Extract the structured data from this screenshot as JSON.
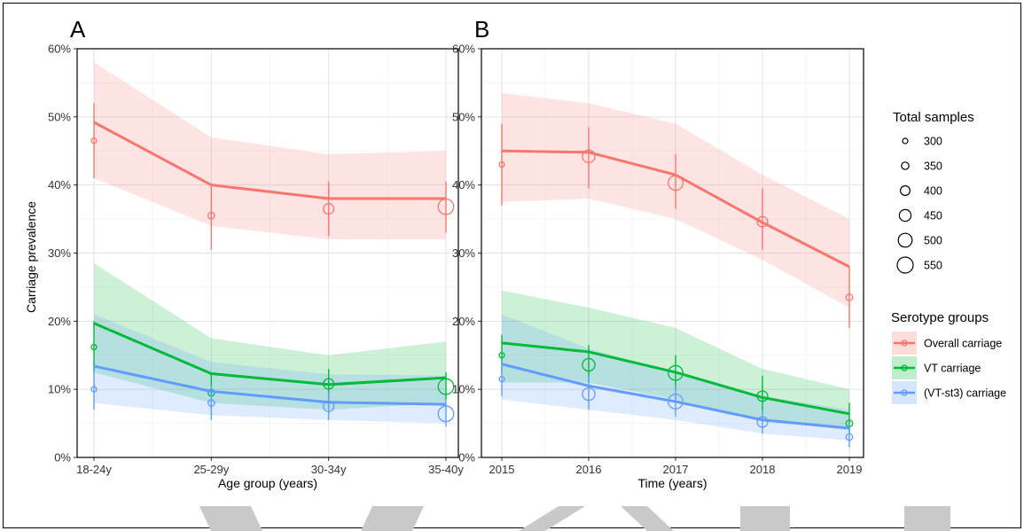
{
  "colors": {
    "overall": "#F8766D",
    "vt": "#00BA38",
    "vtst3": "#619CFF",
    "watermark": "#c9c9c9"
  },
  "legend": {
    "size_title": "Total samples",
    "size_entries": [
      "300",
      "350",
      "400",
      "450",
      "500",
      "550"
    ],
    "group_title": "Serotype groups",
    "group_entries": [
      "Overall carriage",
      "VT carriage",
      "(VT-st3) carriage"
    ]
  },
  "ylabel": "Carriage prevalence",
  "chart_data": [
    {
      "panel": "A",
      "type": "line",
      "xlabel": "Age group (years)",
      "ylabel": "Carriage prevalence",
      "categories": [
        "18-24y",
        "25-29y",
        "30-34y",
        "35-40y"
      ],
      "y_ticks": [
        "0%",
        "10%",
        "20%",
        "30%",
        "40%",
        "50%",
        "60%"
      ],
      "ylim": [
        0,
        60
      ],
      "grid": true,
      "legend": "right",
      "series": [
        {
          "name": "Overall carriage",
          "fit": [
            49.2,
            40.0,
            38.0,
            38.0
          ],
          "band_lower": [
            41.0,
            34.0,
            32.0,
            32.0
          ],
          "band_upper": [
            58.0,
            47.0,
            44.5,
            45.0
          ],
          "observed": [
            46.5,
            35.5,
            36.5,
            36.8
          ],
          "ci_lower": [
            41.0,
            30.5,
            32.5,
            33.0
          ],
          "ci_upper": [
            52.0,
            40.0,
            40.5,
            40.5
          ],
          "samples": [
            300,
            330,
            420,
            540
          ]
        },
        {
          "name": "VT carriage",
          "fit": [
            19.7,
            12.3,
            10.7,
            11.7
          ],
          "band_lower": [
            12.5,
            8.0,
            7.0,
            8.0
          ],
          "band_upper": [
            28.5,
            17.5,
            15.0,
            17.0
          ],
          "observed": [
            16.2,
            9.5,
            10.8,
            10.4
          ],
          "ci_lower": [
            12.5,
            7.0,
            8.5,
            8.5
          ],
          "ci_upper": [
            20.0,
            12.5,
            13.0,
            12.5
          ],
          "samples": [
            300,
            330,
            420,
            540
          ]
        },
        {
          "name": "(VT-st3) carriage",
          "fit": [
            13.4,
            9.7,
            8.1,
            7.8
          ],
          "band_lower": [
            8.0,
            6.2,
            5.5,
            5.0
          ],
          "band_upper": [
            21.0,
            14.0,
            12.2,
            12.0
          ],
          "observed": [
            10.0,
            8.0,
            7.5,
            6.4
          ],
          "ci_lower": [
            7.0,
            5.5,
            5.5,
            4.5
          ],
          "ci_upper": [
            13.0,
            10.5,
            9.5,
            8.5
          ],
          "samples": [
            300,
            330,
            420,
            540
          ]
        }
      ]
    },
    {
      "panel": "B",
      "type": "line",
      "xlabel": "Time (years)",
      "ylabel": "Carriage prevalence",
      "categories": [
        "2015",
        "2016",
        "2017",
        "2018",
        "2019"
      ],
      "y_ticks": [
        "0%",
        "10%",
        "20%",
        "30%",
        "40%",
        "50%",
        "60%"
      ],
      "ylim": [
        0,
        60
      ],
      "grid": true,
      "legend": "right",
      "series": [
        {
          "name": "Overall carriage",
          "fit": [
            45.0,
            44.8,
            41.5,
            34.5,
            28.0
          ],
          "band_lower": [
            37.5,
            38.0,
            35.0,
            29.0,
            22.0
          ],
          "band_upper": [
            53.5,
            52.0,
            49.0,
            41.5,
            35.0
          ],
          "observed": [
            43.0,
            44.2,
            40.3,
            34.6,
            23.5
          ],
          "ci_lower": [
            37.0,
            39.5,
            36.5,
            30.5,
            19.0
          ],
          "ci_upper": [
            49.0,
            48.5,
            44.5,
            39.5,
            28.0
          ],
          "samples": [
            300,
            470,
            520,
            420,
            330
          ]
        },
        {
          "name": "VT carriage",
          "fit": [
            16.8,
            15.5,
            12.5,
            8.8,
            6.4
          ],
          "band_lower": [
            11.0,
            11.0,
            8.5,
            5.5,
            4.0
          ],
          "band_upper": [
            24.5,
            22.0,
            19.0,
            13.0,
            10.0
          ],
          "observed": [
            15.0,
            13.6,
            12.4,
            9.0,
            5.0
          ],
          "ci_lower": [
            12.5,
            11.0,
            10.0,
            6.5,
            3.5
          ],
          "ci_upper": [
            18.0,
            16.5,
            15.0,
            12.0,
            8.0
          ],
          "samples": [
            300,
            470,
            520,
            420,
            330
          ]
        },
        {
          "name": "(VT-st3) carriage",
          "fit": [
            13.7,
            10.5,
            8.2,
            5.5,
            4.3
          ],
          "band_lower": [
            8.5,
            7.0,
            5.5,
            3.5,
            2.5
          ],
          "band_upper": [
            21.0,
            16.0,
            12.5,
            9.0,
            7.0
          ],
          "observed": [
            11.5,
            9.3,
            8.2,
            5.2,
            3.0
          ],
          "ci_lower": [
            9.0,
            7.0,
            6.0,
            3.5,
            1.5
          ],
          "ci_upper": [
            14.0,
            12.0,
            10.5,
            7.0,
            5.0
          ],
          "samples": [
            300,
            470,
            520,
            420,
            330
          ]
        }
      ]
    }
  ]
}
